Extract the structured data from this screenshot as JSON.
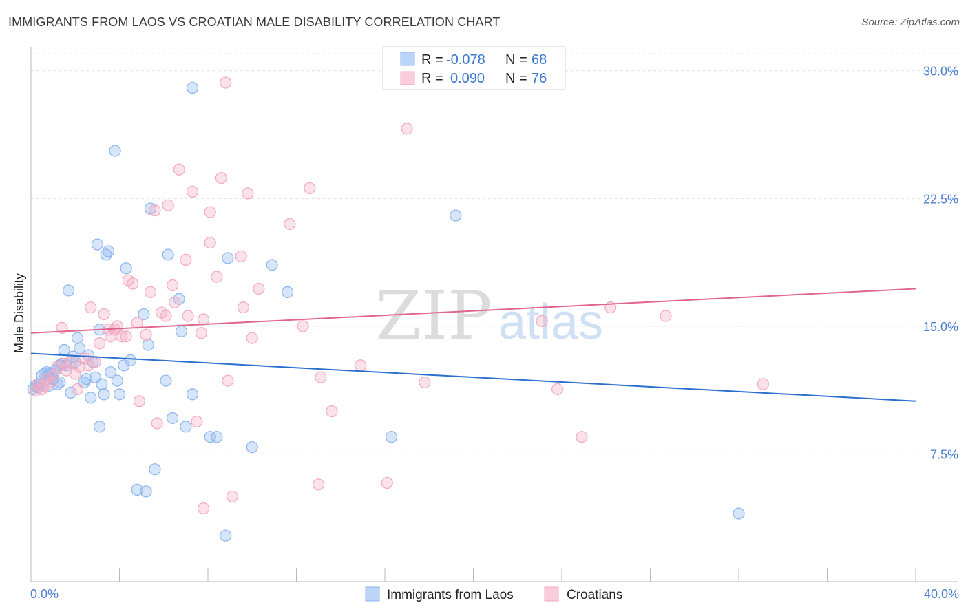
{
  "header": {
    "title": "IMMIGRANTS FROM LAOS VS CROATIAN MALE DISABILITY CORRELATION CHART",
    "source": "Source: ZipAtlas.com"
  },
  "watermark": {
    "zip": "ZIP",
    "atlas": "atlas"
  },
  "legend_box": {
    "rows": [
      {
        "r_label": "R = ",
        "r_value": "-0.078",
        "n_label": "N = ",
        "n_value": "68",
        "color": "#8ab4f0"
      },
      {
        "r_label": "R = ",
        "r_value": "0.090",
        "n_label": "N = ",
        "n_value": "76",
        "color": "#f4a8c0"
      }
    ]
  },
  "chart_data": {
    "type": "scatter",
    "title": "IMMIGRANTS FROM LAOS VS CROATIAN MALE DISABILITY CORRELATION CHART",
    "xlabel": "",
    "ylabel": "Male Disability",
    "xlim": [
      0,
      40
    ],
    "ylim": [
      0,
      31
    ],
    "x_tick_labels": [
      "0.0%",
      "40.0%"
    ],
    "y_ticks": [
      7.5,
      15.0,
      22.5,
      30.0
    ],
    "y_tick_labels": [
      "7.5%",
      "15.0%",
      "22.5%",
      "30.0%"
    ],
    "grid": "horizontal dashed",
    "legend_position": "top-center",
    "series": [
      {
        "name": "Immigrants from Laos",
        "color": "#8ab4f0",
        "line_color": "#2a6fd0",
        "trend": {
          "x": [
            0,
            40
          ],
          "y": [
            13.4,
            10.6
          ]
        },
        "points": [
          [
            0.1,
            11.3
          ],
          [
            0.2,
            11.5
          ],
          [
            0.3,
            11.4
          ],
          [
            0.4,
            11.6
          ],
          [
            0.5,
            12.1
          ],
          [
            0.6,
            12.2
          ],
          [
            0.7,
            12.3
          ],
          [
            0.8,
            12.1
          ],
          [
            0.9,
            12.2
          ],
          [
            1.0,
            11.9
          ],
          [
            1.1,
            12.4
          ],
          [
            1.2,
            11.6
          ],
          [
            1.3,
            12.7
          ],
          [
            1.4,
            12.8
          ],
          [
            1.5,
            13.6
          ],
          [
            1.6,
            12.7
          ],
          [
            1.7,
            17.1
          ],
          [
            1.8,
            11.1
          ],
          [
            1.9,
            13.2
          ],
          [
            2.0,
            12.9
          ],
          [
            2.1,
            14.3
          ],
          [
            2.2,
            13.7
          ],
          [
            2.4,
            11.7
          ],
          [
            2.5,
            11.9
          ],
          [
            2.6,
            13.3
          ],
          [
            2.7,
            10.8
          ],
          [
            2.8,
            12.9
          ],
          [
            3.0,
            19.8
          ],
          [
            3.1,
            14.8
          ],
          [
            3.2,
            11.6
          ],
          [
            3.3,
            11.0
          ],
          [
            3.4,
            19.2
          ],
          [
            3.5,
            19.4
          ],
          [
            3.6,
            12.3
          ],
          [
            3.8,
            25.3
          ],
          [
            3.9,
            11.8
          ],
          [
            4.0,
            11.0
          ],
          [
            4.2,
            12.7
          ],
          [
            4.3,
            18.4
          ],
          [
            4.5,
            13.0
          ],
          [
            4.8,
            5.4
          ],
          [
            5.1,
            15.7
          ],
          [
            5.2,
            5.3
          ],
          [
            5.3,
            13.9
          ],
          [
            5.4,
            21.9
          ],
          [
            5.6,
            6.6
          ],
          [
            6.1,
            11.8
          ],
          [
            6.2,
            19.2
          ],
          [
            6.4,
            9.6
          ],
          [
            6.7,
            16.6
          ],
          [
            6.8,
            14.7
          ],
          [
            7.0,
            9.1
          ],
          [
            7.3,
            11.0
          ],
          [
            7.3,
            29.0
          ],
          [
            8.1,
            8.5
          ],
          [
            8.4,
            8.5
          ],
          [
            8.8,
            2.7
          ],
          [
            8.9,
            19.0
          ],
          [
            10.0,
            7.9
          ],
          [
            10.9,
            18.6
          ],
          [
            11.6,
            17.0
          ],
          [
            16.3,
            8.5
          ],
          [
            19.2,
            21.5
          ],
          [
            32.0,
            4.0
          ],
          [
            3.1,
            9.1
          ],
          [
            1.3,
            11.7
          ],
          [
            0.8,
            11.5
          ],
          [
            2.9,
            12.0
          ]
        ]
      },
      {
        "name": "Croatians",
        "color": "#f4a8c0",
        "line_color": "#e0648c",
        "trend": {
          "x": [
            0,
            40
          ],
          "y": [
            14.6,
            17.2
          ]
        },
        "points": [
          [
            0.2,
            11.2
          ],
          [
            0.3,
            11.6
          ],
          [
            0.5,
            11.3
          ],
          [
            0.6,
            11.5
          ],
          [
            0.7,
            11.9
          ],
          [
            0.9,
            11.7
          ],
          [
            1.0,
            12.1
          ],
          [
            1.2,
            12.6
          ],
          [
            1.4,
            14.9
          ],
          [
            1.5,
            12.8
          ],
          [
            1.6,
            12.4
          ],
          [
            1.8,
            12.9
          ],
          [
            2.0,
            12.2
          ],
          [
            2.1,
            11.3
          ],
          [
            2.2,
            12.6
          ],
          [
            2.4,
            13.1
          ],
          [
            2.6,
            12.7
          ],
          [
            2.7,
            16.1
          ],
          [
            2.9,
            12.9
          ],
          [
            3.1,
            14.0
          ],
          [
            3.3,
            15.7
          ],
          [
            3.5,
            14.8
          ],
          [
            3.6,
            14.4
          ],
          [
            3.8,
            14.8
          ],
          [
            3.9,
            15.0
          ],
          [
            4.1,
            14.4
          ],
          [
            4.3,
            14.4
          ],
          [
            4.4,
            17.7
          ],
          [
            4.6,
            17.5
          ],
          [
            4.8,
            15.2
          ],
          [
            4.9,
            10.6
          ],
          [
            5.2,
            14.5
          ],
          [
            5.4,
            17.0
          ],
          [
            5.6,
            21.8
          ],
          [
            5.7,
            9.3
          ],
          [
            5.9,
            15.8
          ],
          [
            6.1,
            15.6
          ],
          [
            6.2,
            22.1
          ],
          [
            6.4,
            17.4
          ],
          [
            6.5,
            16.4
          ],
          [
            6.7,
            24.2
          ],
          [
            7.0,
            18.9
          ],
          [
            7.1,
            15.6
          ],
          [
            7.3,
            22.9
          ],
          [
            7.5,
            9.4
          ],
          [
            7.7,
            14.6
          ],
          [
            7.8,
            15.4
          ],
          [
            7.8,
            4.3
          ],
          [
            8.1,
            19.9
          ],
          [
            8.1,
            21.7
          ],
          [
            8.4,
            17.9
          ],
          [
            8.6,
            23.7
          ],
          [
            8.8,
            29.3
          ],
          [
            8.9,
            11.8
          ],
          [
            9.1,
            5.0
          ],
          [
            9.5,
            19.1
          ],
          [
            9.6,
            16.1
          ],
          [
            9.8,
            22.8
          ],
          [
            10.0,
            14.3
          ],
          [
            10.3,
            17.2
          ],
          [
            11.7,
            21.0
          ],
          [
            12.3,
            15.0
          ],
          [
            12.6,
            23.1
          ],
          [
            13.0,
            5.7
          ],
          [
            13.1,
            12.0
          ],
          [
            13.6,
            10.0
          ],
          [
            14.9,
            12.7
          ],
          [
            16.1,
            5.8
          ],
          [
            17.0,
            26.6
          ],
          [
            17.8,
            11.7
          ],
          [
            23.1,
            15.3
          ],
          [
            23.8,
            11.3
          ],
          [
            24.9,
            8.5
          ],
          [
            26.2,
            16.1
          ],
          [
            28.7,
            15.6
          ],
          [
            33.1,
            11.6
          ]
        ]
      }
    ]
  }
}
